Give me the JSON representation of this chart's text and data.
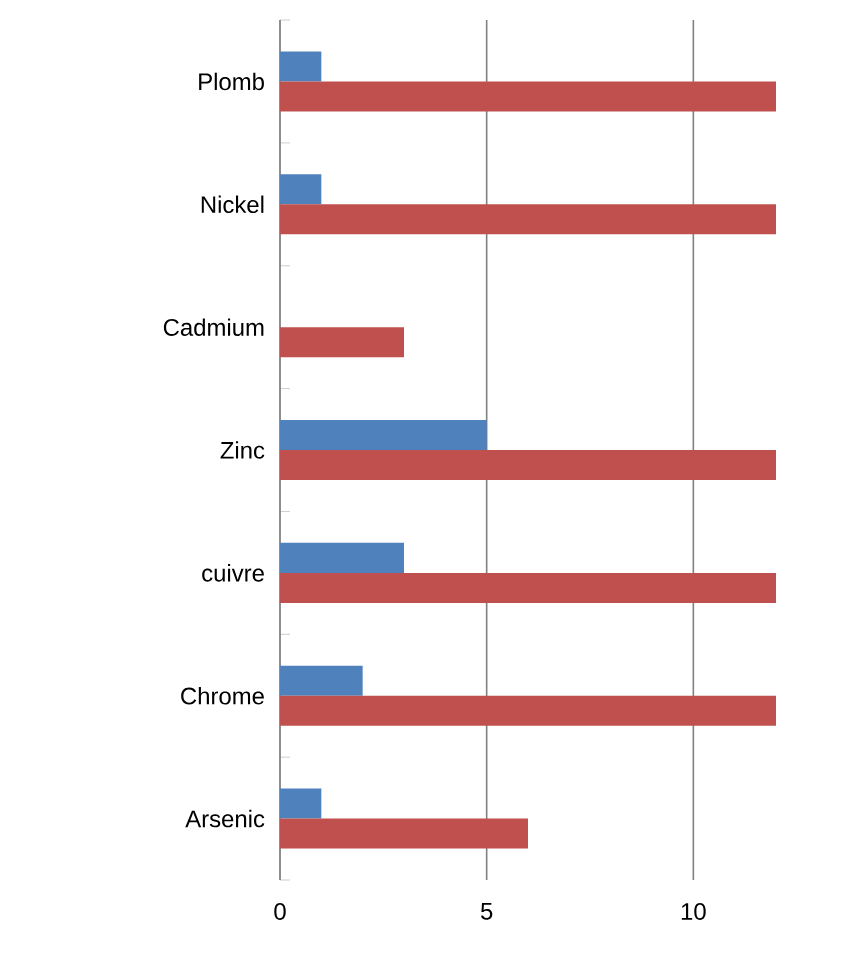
{
  "chart_data": {
    "type": "bar",
    "orientation": "horizontal",
    "categories": [
      "Plomb",
      "Nickel",
      "Cadmium",
      "Zinc",
      "cuivre",
      "Chrome",
      "Arsenic"
    ],
    "series": [
      {
        "color": "#4f81bd",
        "values": [
          1,
          1,
          null,
          5,
          3,
          2,
          1
        ]
      },
      {
        "color": "#c0504d",
        "values": [
          12,
          12,
          3,
          12,
          12,
          12,
          6
        ]
      }
    ],
    "xlim": [
      0,
      12
    ],
    "xticks": [
      0,
      5,
      10
    ],
    "grid": "x"
  }
}
